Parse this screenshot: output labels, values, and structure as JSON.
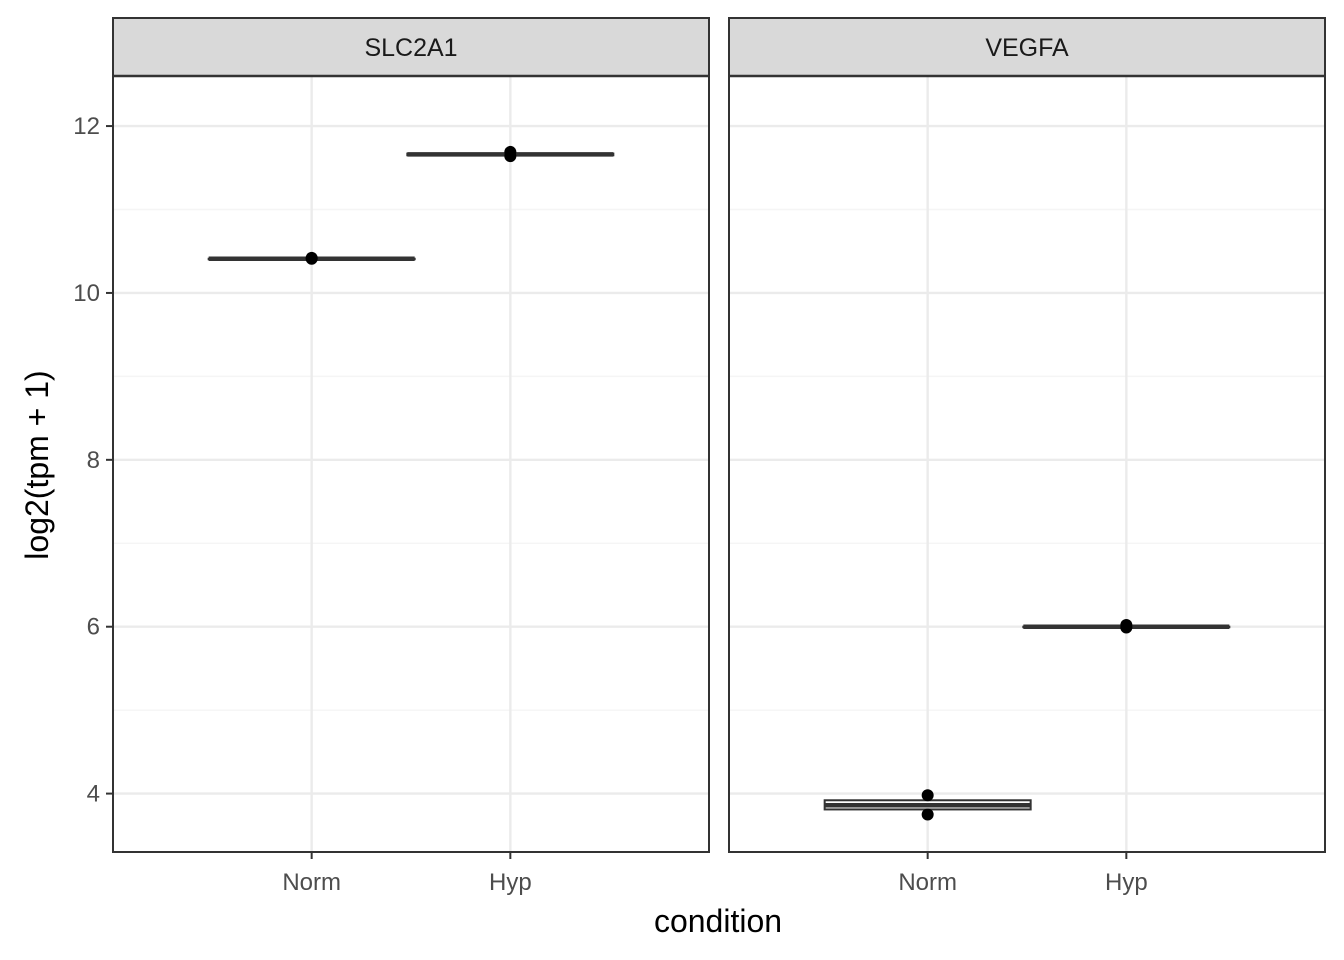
{
  "chart_data": {
    "type": "boxplot",
    "layout": "faceted",
    "xlabel": "condition",
    "ylabel": "log2(tpm + 1)",
    "categories": [
      "Norm",
      "Hyp"
    ],
    "ylim": [
      3.3,
      12.6
    ],
    "yticks": [
      4,
      6,
      8,
      10,
      12
    ],
    "grid": true,
    "panels": [
      {
        "facet": "SLC2A1",
        "boxes": [
          {
            "category": "Norm",
            "q1": 10.41,
            "median": 10.41,
            "q3": 10.41,
            "min": 10.41,
            "max": 10.41,
            "points": [
              10.41,
              10.42
            ]
          },
          {
            "category": "Hyp",
            "q1": 11.65,
            "median": 11.66,
            "q3": 11.67,
            "min": 11.64,
            "max": 11.69,
            "points": [
              11.64,
              11.69
            ]
          }
        ]
      },
      {
        "facet": "VEGFA",
        "boxes": [
          {
            "category": "Norm",
            "q1": 3.81,
            "median": 3.86,
            "q3": 3.92,
            "min": 3.75,
            "max": 3.98,
            "points": [
              3.75,
              3.98
            ]
          },
          {
            "category": "Hyp",
            "q1": 6.0,
            "median": 6.0,
            "q3": 6.0,
            "min": 5.99,
            "max": 6.02,
            "points": [
              5.99,
              6.02
            ]
          }
        ]
      }
    ],
    "colors": {
      "box_line": "#333333",
      "point": "#000000",
      "grid_major": "#ebebeb",
      "grid_minor": "#f5f5f5",
      "strip_fill": "#d9d9d9",
      "panel_border": "#333333"
    }
  }
}
